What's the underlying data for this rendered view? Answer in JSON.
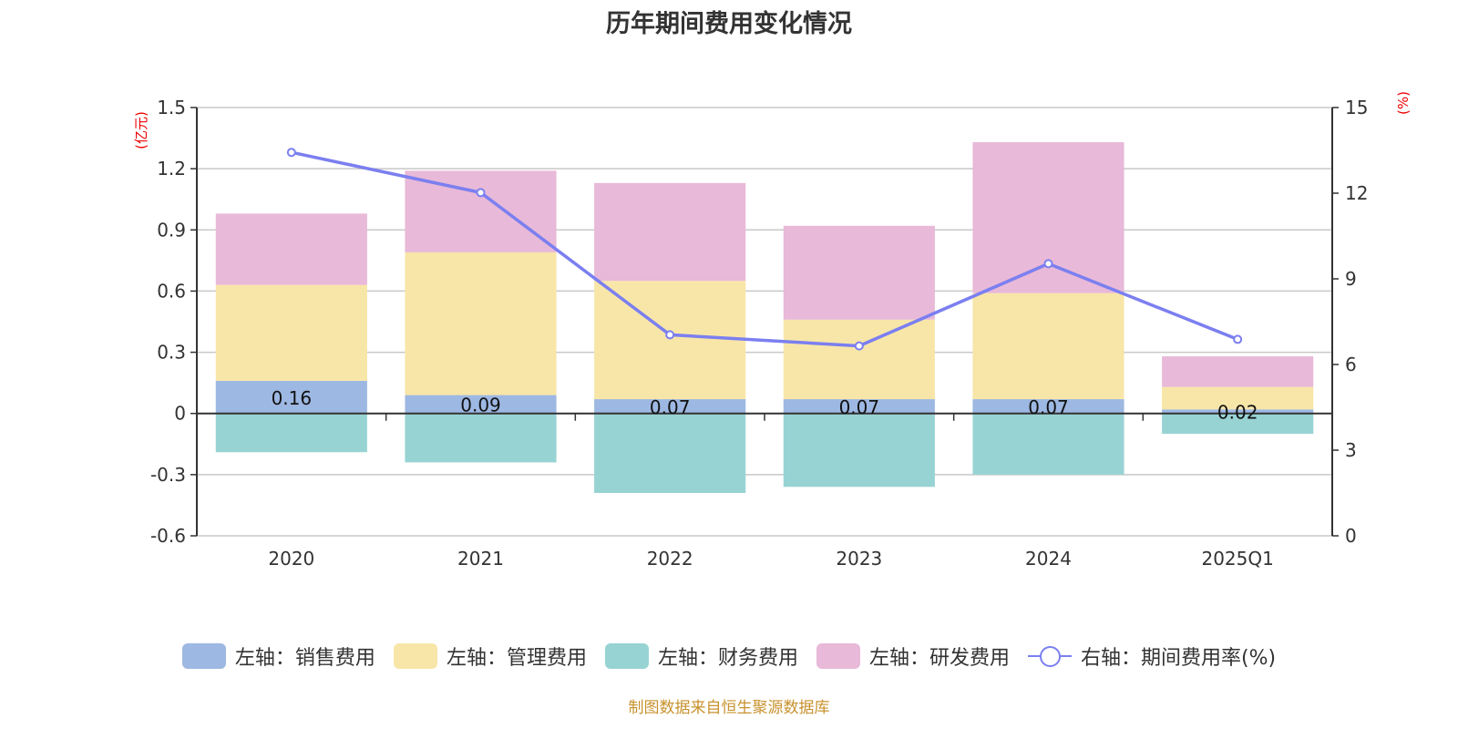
{
  "chart_data": {
    "type": "bar",
    "title": "历年期间费用变化情况",
    "categories": [
      "2020",
      "2021",
      "2022",
      "2023",
      "2024",
      "2025Q1"
    ],
    "left_axis": {
      "unit_label": "(亿元)",
      "ylim": [
        -0.6,
        1.5
      ],
      "ticks": [
        "1.5",
        "1.2",
        "0.9",
        "0.6",
        "0.3",
        "0",
        "-0.3",
        "-0.6"
      ],
      "tick_values": [
        1.5,
        1.2,
        0.9,
        0.6,
        0.3,
        0,
        -0.3,
        -0.6
      ]
    },
    "right_axis": {
      "unit_label": "(%)",
      "ylim": [
        0,
        15
      ],
      "ticks": [
        "15",
        "12",
        "9",
        "6",
        "3",
        "0"
      ],
      "tick_values": [
        15,
        12,
        9,
        6,
        3,
        0
      ]
    },
    "grid": true,
    "legend_position": "bottom",
    "series": [
      {
        "name": "左轴：销售费用",
        "type": "bar",
        "axis": "left",
        "color": "#9db8e2",
        "values": [
          0.16,
          0.09,
          0.07,
          0.07,
          0.07,
          0.02
        ],
        "labels": [
          "0.16",
          "0.09",
          "0.07",
          "0.07",
          "0.07",
          "0.02"
        ]
      },
      {
        "name": "左轴：管理费用",
        "type": "bar",
        "axis": "left",
        "color": "#f8e6a8",
        "values": [
          0.47,
          0.7,
          0.58,
          0.39,
          0.52,
          0.11
        ]
      },
      {
        "name": "左轴：财务费用",
        "type": "bar",
        "axis": "left",
        "color": "#98d3d4",
        "values": [
          -0.19,
          -0.24,
          -0.39,
          -0.36,
          -0.3,
          -0.1
        ]
      },
      {
        "name": "左轴：研发费用",
        "type": "bar",
        "axis": "left",
        "color": "#e8b9d8",
        "values": [
          0.35,
          0.4,
          0.48,
          0.46,
          0.74,
          0.15
        ]
      },
      {
        "name": "右轴：期间费用率(%)",
        "type": "line",
        "axis": "right",
        "color": "#7b7ff0",
        "values": [
          13.43,
          12.02,
          7.04,
          6.65,
          9.53,
          6.88
        ]
      }
    ]
  },
  "footer": "制图数据来自恒生聚源数据库"
}
